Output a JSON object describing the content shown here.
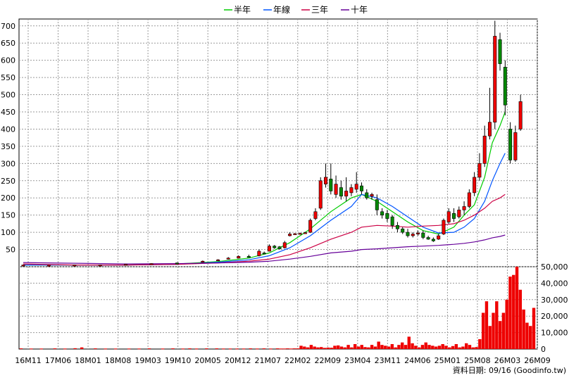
{
  "chart_data": [
    {
      "type": "candlestick",
      "ylim": [
        0,
        720
      ],
      "y_ticks": [
        50,
        100,
        150,
        200,
        250,
        300,
        350,
        400,
        450,
        500,
        550,
        600,
        650,
        700
      ],
      "grid": true,
      "legend_position": "top-center",
      "x_ticks": [
        "16M11",
        "17M06",
        "18M01",
        "18M08",
        "19M03",
        "19M10",
        "20M05",
        "20M12",
        "21M07",
        "22M02",
        "22M09",
        "23M04",
        "23M11",
        "24M06",
        "25M01",
        "25M08",
        "26M03",
        "26M09"
      ],
      "series": [
        {
          "name": "半年",
          "color": "#00cc00",
          "values": [
            [
              0,
              5
            ],
            [
              20,
              5
            ],
            [
              30,
              8
            ],
            [
              38,
              15
            ],
            [
              44,
              25
            ],
            [
              48,
              40
            ],
            [
              52,
              70
            ],
            [
              56,
              110
            ],
            [
              60,
              160
            ],
            [
              64,
              200
            ],
            [
              66,
              210
            ],
            [
              69,
              190
            ],
            [
              72,
              160
            ],
            [
              75,
              130
            ],
            [
              78,
              105
            ],
            [
              81,
              95
            ],
            [
              84,
              115
            ],
            [
              86,
              150
            ],
            [
              88,
              180
            ],
            [
              90,
              260
            ],
            [
              91.5,
              360
            ],
            [
              93,
              410
            ],
            [
              94,
              450
            ]
          ]
        },
        {
          "name": "年線",
          "color": "#0055ff",
          "values": [
            [
              0,
              5
            ],
            [
              20,
              5
            ],
            [
              30,
              7
            ],
            [
              38,
              13
            ],
            [
              44,
              20
            ],
            [
              48,
              32
            ],
            [
              52,
              55
            ],
            [
              56,
              90
            ],
            [
              60,
              135
            ],
            [
              64,
              175
            ],
            [
              66,
              210
            ],
            [
              69,
              200
            ],
            [
              72,
              175
            ],
            [
              75,
              145
            ],
            [
              78,
              115
            ],
            [
              81,
              98
            ],
            [
              84,
              100
            ],
            [
              86,
              115
            ],
            [
              88,
              140
            ],
            [
              90,
              190
            ],
            [
              91.5,
              250
            ],
            [
              93,
              300
            ],
            [
              94,
              330
            ]
          ]
        },
        {
          "name": "三年",
          "color": "#cc0044",
          "values": [
            [
              0,
              8
            ],
            [
              10,
              5
            ],
            [
              20,
              5
            ],
            [
              30,
              7
            ],
            [
              38,
              11
            ],
            [
              44,
              16
            ],
            [
              48,
              22
            ],
            [
              52,
              35
            ],
            [
              56,
              55
            ],
            [
              60,
              80
            ],
            [
              64,
              100
            ],
            [
              66,
              115
            ],
            [
              69,
              120
            ],
            [
              72,
              118
            ],
            [
              75,
              115
            ],
            [
              78,
              118
            ],
            [
              81,
              120
            ],
            [
              84,
              125
            ],
            [
              86,
              135
            ],
            [
              88,
              150
            ],
            [
              90,
              170
            ],
            [
              91.5,
              190
            ],
            [
              93,
              200
            ],
            [
              94,
              210
            ]
          ]
        },
        {
          "name": "十年",
          "color": "#660099",
          "values": [
            [
              0,
              12
            ],
            [
              10,
              10
            ],
            [
              20,
              8
            ],
            [
              30,
              9
            ],
            [
              38,
              11
            ],
            [
              44,
              13
            ],
            [
              48,
              16
            ],
            [
              52,
              22
            ],
            [
              56,
              30
            ],
            [
              60,
              40
            ],
            [
              64,
              45
            ],
            [
              66,
              50
            ],
            [
              69,
              52
            ],
            [
              72,
              55
            ],
            [
              75,
              58
            ],
            [
              78,
              60
            ],
            [
              81,
              62
            ],
            [
              84,
              65
            ],
            [
              86,
              68
            ],
            [
              88,
              72
            ],
            [
              90,
              78
            ],
            [
              91.5,
              84
            ],
            [
              93,
              88
            ],
            [
              94,
              92
            ]
          ]
        }
      ],
      "candles": [
        [
          0,
          3,
          5,
          2,
          6
        ],
        [
          5,
          3,
          4,
          2,
          5
        ],
        [
          10,
          4,
          5,
          3,
          6
        ],
        [
          15,
          5,
          5,
          4,
          6
        ],
        [
          20,
          6,
          7,
          5,
          8
        ],
        [
          25,
          8,
          9,
          7,
          10
        ],
        [
          30,
          11,
          10,
          9,
          12
        ],
        [
          35,
          15,
          16,
          14,
          18
        ],
        [
          38,
          18,
          20,
          17,
          22
        ],
        [
          40,
          22,
          25,
          21,
          28
        ],
        [
          42,
          25,
          30,
          24,
          33
        ],
        [
          44,
          30,
          28,
          27,
          35
        ],
        [
          46,
          32,
          45,
          30,
          50
        ],
        [
          47,
          40,
          38,
          36,
          44
        ],
        [
          48,
          45,
          60,
          44,
          65
        ],
        [
          49,
          60,
          55,
          52,
          63
        ],
        [
          50,
          58,
          52,
          50,
          60
        ],
        [
          51,
          55,
          70,
          53,
          75
        ],
        [
          52,
          90,
          95,
          88,
          100
        ],
        [
          53,
          95,
          96,
          93,
          98
        ],
        [
          54,
          96,
          97,
          94,
          99
        ],
        [
          55,
          98,
          99,
          96,
          101
        ],
        [
          56,
          100,
          135,
          98,
          140
        ],
        [
          57,
          140,
          160,
          135,
          170
        ],
        [
          58,
          170,
          250,
          165,
          260
        ],
        [
          59,
          240,
          260,
          230,
          300
        ],
        [
          60,
          255,
          220,
          210,
          300
        ],
        [
          61,
          210,
          240,
          200,
          265
        ],
        [
          62,
          230,
          205,
          195,
          250
        ],
        [
          63,
          205,
          220,
          190,
          260
        ],
        [
          64,
          215,
          230,
          205,
          240
        ],
        [
          65,
          225,
          240,
          215,
          275
        ],
        [
          66,
          235,
          220,
          210,
          245
        ],
        [
          67,
          215,
          200,
          195,
          225
        ],
        [
          68,
          205,
          210,
          195,
          215
        ],
        [
          69,
          195,
          165,
          150,
          210
        ],
        [
          70,
          160,
          150,
          140,
          170
        ],
        [
          71,
          155,
          140,
          130,
          165
        ],
        [
          72,
          145,
          120,
          110,
          150
        ],
        [
          73,
          120,
          110,
          100,
          130
        ],
        [
          74,
          110,
          100,
          95,
          115
        ],
        [
          75,
          100,
          90,
          85,
          110
        ],
        [
          76,
          90,
          95,
          85,
          100
        ],
        [
          77,
          95,
          98,
          90,
          105
        ],
        [
          78,
          98,
          85,
          80,
          105
        ],
        [
          79,
          85,
          80,
          78,
          90
        ],
        [
          80,
          80,
          75,
          72,
          85
        ],
        [
          81,
          80,
          90,
          78,
          95
        ],
        [
          82,
          95,
          135,
          92,
          140
        ],
        [
          83,
          130,
          160,
          125,
          170
        ],
        [
          84,
          155,
          140,
          130,
          170
        ],
        [
          85,
          145,
          165,
          140,
          175
        ],
        [
          86,
          165,
          175,
          150,
          190
        ],
        [
          87,
          175,
          215,
          170,
          225
        ],
        [
          88,
          215,
          260,
          205,
          275
        ],
        [
          89,
          260,
          300,
          250,
          330
        ],
        [
          90,
          300,
          380,
          290,
          410
        ],
        [
          91,
          380,
          420,
          370,
          520
        ],
        [
          92,
          420,
          670,
          400,
          715
        ],
        [
          93,
          660,
          590,
          570,
          680
        ],
        [
          94,
          580,
          470,
          440,
          600
        ],
        [
          95,
          400,
          310,
          300,
          420
        ],
        [
          96,
          310,
          390,
          305,
          410
        ],
        [
          97,
          400,
          480,
          395,
          500
        ]
      ],
      "volume_ylim": [
        0,
        50000
      ],
      "volume_ticks": [
        0,
        10000,
        20000,
        30000,
        40000,
        50000
      ],
      "volume_tick_labels": [
        "0",
        "10,000",
        "20,000",
        "30,000",
        "40,000",
        "50,000"
      ],
      "volume_values": [
        [
          0,
          400
        ],
        [
          3,
          300
        ],
        [
          6,
          300
        ],
        [
          10,
          400
        ],
        [
          13,
          300
        ],
        [
          16,
          500
        ],
        [
          18,
          1000
        ],
        [
          22,
          400
        ],
        [
          25,
          300
        ],
        [
          28,
          300
        ],
        [
          32,
          300
        ],
        [
          35,
          300
        ],
        [
          38,
          400
        ],
        [
          42,
          300
        ],
        [
          45,
          400
        ],
        [
          48,
          300
        ],
        [
          50,
          400
        ],
        [
          52,
          300
        ],
        [
          55,
          400
        ],
        [
          58,
          400
        ],
        [
          60,
          300
        ],
        [
          62,
          300
        ],
        [
          64,
          300
        ],
        [
          66,
          300
        ],
        [
          68,
          400
        ],
        [
          70,
          300
        ],
        [
          72,
          400
        ],
        [
          74,
          300
        ],
        [
          76,
          400
        ],
        [
          77,
          300
        ],
        [
          78,
          300
        ],
        [
          79,
          400
        ],
        [
          80,
          300
        ],
        [
          81,
          400
        ],
        [
          82,
          400
        ],
        [
          83,
          2000
        ],
        [
          84,
          1500
        ],
        [
          85,
          1000
        ],
        [
          86,
          2500
        ],
        [
          87,
          1500
        ],
        [
          88,
          1000
        ],
        [
          89,
          1200
        ],
        [
          90,
          700
        ],
        [
          91,
          900
        ],
        [
          92,
          800
        ],
        [
          93,
          2000
        ],
        [
          94,
          2200
        ],
        [
          95,
          1500
        ],
        [
          96,
          1000
        ],
        [
          97,
          2500
        ],
        [
          98,
          1000
        ],
        [
          99,
          3000
        ],
        [
          100,
          1500
        ],
        [
          101,
          2500
        ],
        [
          102,
          1200
        ],
        [
          103,
          1000
        ],
        [
          104,
          2500
        ],
        [
          105,
          1500
        ],
        [
          106,
          4500
        ],
        [
          107,
          2500
        ],
        [
          108,
          2000
        ],
        [
          109,
          1500
        ],
        [
          110,
          3000
        ],
        [
          111,
          1000
        ],
        [
          112,
          2500
        ],
        [
          113,
          4000
        ],
        [
          114,
          2500
        ],
        [
          115,
          7500
        ],
        [
          116,
          3500
        ],
        [
          117,
          2000
        ],
        [
          118,
          1000
        ],
        [
          119,
          2500
        ],
        [
          120,
          4000
        ],
        [
          121,
          2500
        ],
        [
          122,
          2000
        ],
        [
          123,
          1500
        ],
        [
          124,
          2000
        ],
        [
          125,
          3000
        ],
        [
          126,
          2000
        ],
        [
          127,
          1000
        ],
        [
          128,
          1800
        ],
        [
          129,
          3000
        ],
        [
          130,
          1000
        ],
        [
          131,
          1500
        ],
        [
          132,
          3500
        ],
        [
          133,
          2500
        ],
        [
          134,
          1000
        ],
        [
          135,
          1200
        ],
        [
          136,
          6000
        ],
        [
          137,
          22000
        ],
        [
          138,
          29000
        ],
        [
          139,
          14000
        ],
        [
          140,
          22000
        ],
        [
          141,
          29000
        ],
        [
          142,
          17000
        ],
        [
          143,
          22000
        ],
        [
          144,
          30000
        ],
        [
          145,
          44000
        ],
        [
          146,
          45000
        ],
        [
          147,
          50000
        ],
        [
          148,
          36000
        ],
        [
          149,
          24000
        ],
        [
          150,
          16000
        ],
        [
          151,
          14000
        ],
        [
          152,
          25000
        ]
      ],
      "volume_color": "#ee0000"
    }
  ],
  "footer": "資料日期: 09/16  (Goodinfo.tw)"
}
